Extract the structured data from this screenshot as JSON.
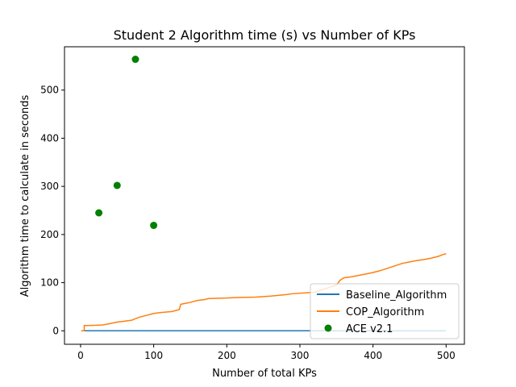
{
  "chart_data": {
    "type": "line",
    "title": "Student 2 Algorithm time (s) vs Number of KPs",
    "xlabel": "Number of total KPs",
    "ylabel": "Algorithm time to calculate in seconds",
    "xlim": [
      -22,
      525
    ],
    "ylim": [
      -28,
      590
    ],
    "xticks": [
      0,
      100,
      200,
      300,
      400,
      500
    ],
    "yticks": [
      0,
      100,
      200,
      300,
      400,
      500
    ],
    "grid": false,
    "legend_position": "bottom-right",
    "series": [
      {
        "name": "Baseline_Algorithm",
        "kind": "line",
        "color": "#1f77b4",
        "x": [
          1,
          500
        ],
        "y": [
          0,
          0
        ]
      },
      {
        "name": "COP_Algorithm",
        "kind": "line",
        "color": "#ff7f0e",
        "x": [
          1,
          5,
          5,
          10,
          30,
          40,
          50,
          60,
          70,
          75,
          80,
          90,
          100,
          110,
          125,
          135,
          137,
          140,
          150,
          160,
          170,
          175,
          200,
          210,
          240,
          260,
          280,
          290,
          320,
          340,
          350,
          355,
          360,
          370,
          390,
          400,
          410,
          420,
          430,
          440,
          450,
          460,
          470,
          480,
          490,
          495,
          500
        ],
        "y": [
          0,
          0,
          11,
          11,
          12,
          15,
          18,
          20,
          22,
          25,
          28,
          32,
          36,
          38,
          40,
          44,
          55,
          56,
          59,
          63,
          65,
          67,
          68,
          69,
          70,
          72,
          75,
          77,
          80,
          90,
          95,
          105,
          110,
          112,
          118,
          121,
          125,
          130,
          135,
          140,
          143,
          146,
          148,
          151,
          155,
          158,
          160
        ]
      },
      {
        "name": "ACE v2.1",
        "kind": "scatter",
        "color": "#008000",
        "x": [
          25,
          50,
          75,
          100
        ],
        "y": [
          245,
          302,
          564,
          219
        ]
      }
    ]
  }
}
